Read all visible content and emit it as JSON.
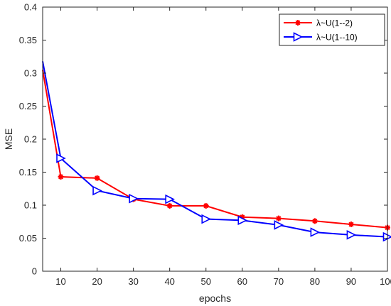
{
  "chart_data": {
    "type": "line",
    "title": "",
    "xlabel": "epochs",
    "ylabel": "MSE",
    "xlim": [
      5,
      100
    ],
    "ylim": [
      0,
      0.4
    ],
    "xticks": [
      10,
      20,
      30,
      40,
      50,
      60,
      70,
      80,
      90,
      100
    ],
    "xtick_labels": [
      "10",
      "20",
      "30",
      "40",
      "50",
      "60",
      "70",
      "80",
      "90",
      "100"
    ],
    "yticks": [
      0,
      0.05,
      0.1,
      0.15,
      0.2,
      0.25,
      0.3,
      0.35,
      0.4
    ],
    "ytick_labels": [
      "0",
      "0.05",
      "0.1",
      "0.15",
      "0.2",
      "0.25",
      "0.3",
      "0.35",
      "0.4"
    ],
    "grid": false,
    "legend_position": "top-right",
    "series": [
      {
        "name": "λ~U(1--2)",
        "color": "#ff0000",
        "marker": "asterisk",
        "x": [
          5,
          10,
          20,
          30,
          40,
          50,
          60,
          70,
          80,
          90,
          100
        ],
        "y": [
          0.305,
          0.143,
          0.141,
          0.109,
          0.099,
          0.099,
          0.082,
          0.08,
          0.076,
          0.071,
          0.066
        ]
      },
      {
        "name": "λ~U(1--10)",
        "color": "#0000ff",
        "marker": "triangle-right",
        "x": [
          5,
          10,
          20,
          30,
          40,
          50,
          60,
          70,
          80,
          90,
          100
        ],
        "y": [
          0.318,
          0.171,
          0.122,
          0.11,
          0.109,
          0.079,
          0.077,
          0.07,
          0.059,
          0.055,
          0.052
        ]
      }
    ]
  }
}
